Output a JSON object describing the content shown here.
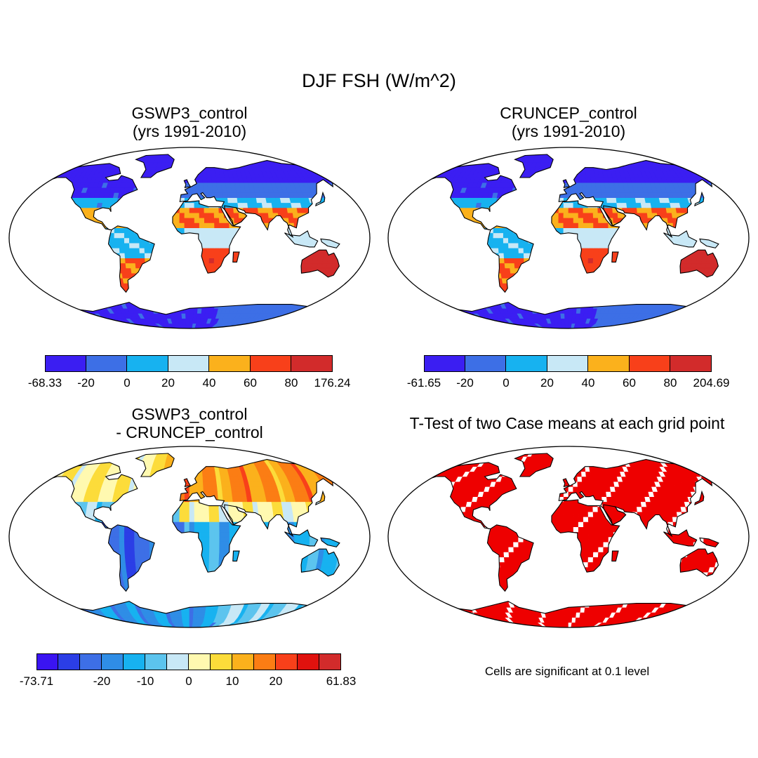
{
  "title": "DJF FSH (W/m^2)",
  "panels": [
    {
      "id": "a",
      "title_line1": "GSWP3_control",
      "title_line2": "(yrs 1991-2010)",
      "colorbar": {
        "colors": [
          "#3b1ef2",
          "#3d6fe6",
          "#17b2f0",
          "#c8e8f6",
          "#fbb11c",
          "#f8401a",
          "#d22b2b"
        ],
        "labels": [
          "-68.33",
          "-20",
          "0",
          "20",
          "40",
          "60",
          "80",
          "176.24"
        ]
      }
    },
    {
      "id": "b",
      "title_line1": "CRUNCEP_control",
      "title_line2": "(yrs 1991-2010)",
      "colorbar": {
        "colors": [
          "#3b1ef2",
          "#3d6fe6",
          "#17b2f0",
          "#c8e8f6",
          "#fbb11c",
          "#f8401a",
          "#d22b2b"
        ],
        "labels": [
          "-61.65",
          "-20",
          "0",
          "20",
          "40",
          "60",
          "80",
          "204.69"
        ]
      }
    },
    {
      "id": "c",
      "title_line1": "GSWP3_control",
      "title_line2": "- CRUNCEP_control",
      "colorbar": {
        "colors": [
          "#3a14f2",
          "#2b3ee6",
          "#3d6fe6",
          "#2f8de6",
          "#17b2f0",
          "#5cc4ee",
          "#c8e8f6",
          "#fff9b0",
          "#fcdc3a",
          "#fbb11c",
          "#fb7d14",
          "#f8401a",
          "#e0120e",
          "#d22b2b"
        ],
        "labels": [
          "-73.71",
          "-20",
          "-10",
          "0",
          "10",
          "20",
          "61.83"
        ],
        "label_boundaries": [
          0,
          3,
          5,
          7,
          9,
          11,
          14
        ]
      }
    },
    {
      "id": "d",
      "title_line1": "T-Test of two Case means at each grid point",
      "note": "Cells are significant at 0.1 level",
      "significance_color": "#ee0000"
    }
  ]
}
